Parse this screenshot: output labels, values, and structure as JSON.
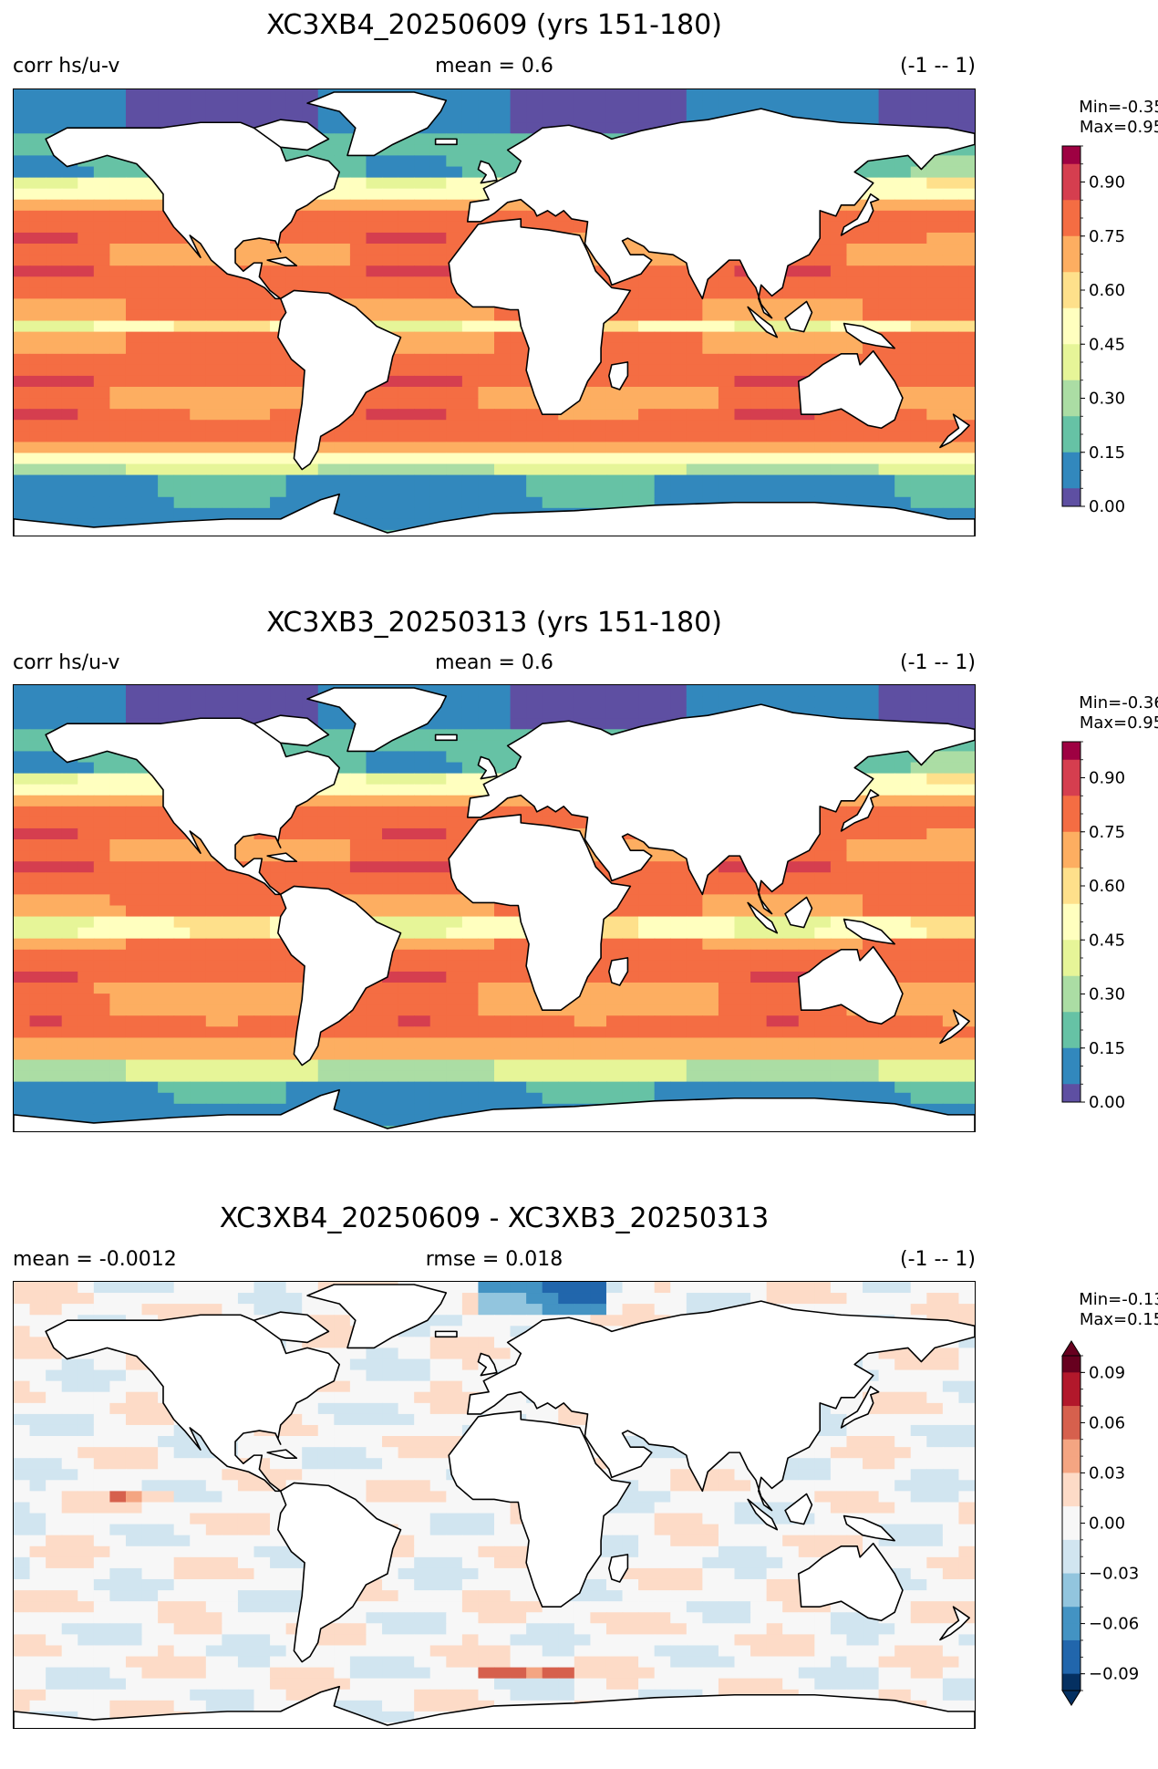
{
  "panels": [
    {
      "title": "XC3XB4_20250609 (yrs 151-180)",
      "left_label": "corr hs/u-v",
      "center_label": "mean = 0.6",
      "right_label": "(-1 -- 1)",
      "min_label": "Min=-0.35",
      "max_label": "Max=0.95",
      "colormap": "Spectral_r",
      "colorbar_extend": "neither",
      "colorbar_ticks": [
        "0.00",
        "0.15",
        "0.30",
        "0.45",
        "0.60",
        "0.75",
        "0.90"
      ],
      "colorbar_range": [
        0.0,
        1.0
      ]
    },
    {
      "title": "XC3XB3_20250313 (yrs 151-180)",
      "left_label": "corr hs/u-v",
      "center_label": "mean = 0.6",
      "right_label": "(-1 -- 1)",
      "min_label": "Min=-0.36",
      "max_label": "Max=0.95",
      "colormap": "Spectral_r",
      "colorbar_extend": "neither",
      "colorbar_ticks": [
        "0.00",
        "0.15",
        "0.30",
        "0.45",
        "0.60",
        "0.75",
        "0.90"
      ],
      "colorbar_range": [
        0.0,
        1.0
      ]
    },
    {
      "title": "XC3XB4_20250609 - XC3XB3_20250313",
      "left_label": "mean = -0.0012",
      "center_label": "rmse = 0.018",
      "right_label": "(-1 -- 1)",
      "min_label": "Min=-0.13",
      "max_label": "Max=0.15",
      "colormap": "RdBu_r",
      "colorbar_extend": "both",
      "colorbar_ticks": [
        "−0.09",
        "−0.06",
        "−0.03",
        "0.00",
        "0.03",
        "0.06",
        "0.09"
      ],
      "colorbar_range": [
        -0.1,
        0.1
      ]
    }
  ],
  "colors": {
    "spectral": [
      "#5e4fa2",
      "#3288bd",
      "#66c2a5",
      "#abdda4",
      "#e6f598",
      "#ffffbf",
      "#fee08b",
      "#fdae61",
      "#f46d43",
      "#d53e4f",
      "#9e0142"
    ],
    "rdbu": [
      "#053061",
      "#2166ac",
      "#4393c3",
      "#92c5de",
      "#d1e5f0",
      "#f7f7f7",
      "#fddbc7",
      "#f4a582",
      "#d6604d",
      "#b2182b",
      "#67001f"
    ],
    "land": "#ffffff",
    "coastline": "#000000"
  }
}
